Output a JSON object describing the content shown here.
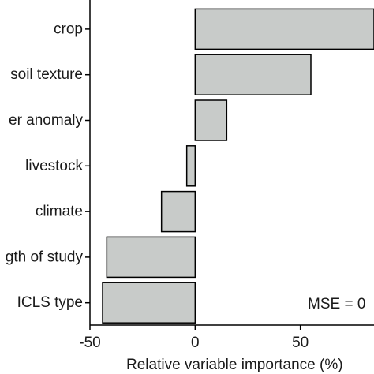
{
  "chart_data": {
    "type": "bar",
    "orientation": "horizontal",
    "categories": [
      "crop",
      "soil texture",
      "er anomaly",
      "livestock",
      "climate",
      "gth of study",
      "ICLS type"
    ],
    "values": [
      85,
      55,
      15,
      -4,
      -16,
      -42,
      -44
    ],
    "xlabel": "Relative variable importance (%)",
    "ylabel": "",
    "xlim": [
      -50,
      85
    ],
    "xticks": [
      -50,
      0,
      50
    ],
    "xtick_labels": [
      "-50",
      "0",
      "50"
    ],
    "annotation": "MSE = 0",
    "grid": false,
    "bar_color": "#c8cbc9",
    "bar_edge_color": "#000000"
  }
}
